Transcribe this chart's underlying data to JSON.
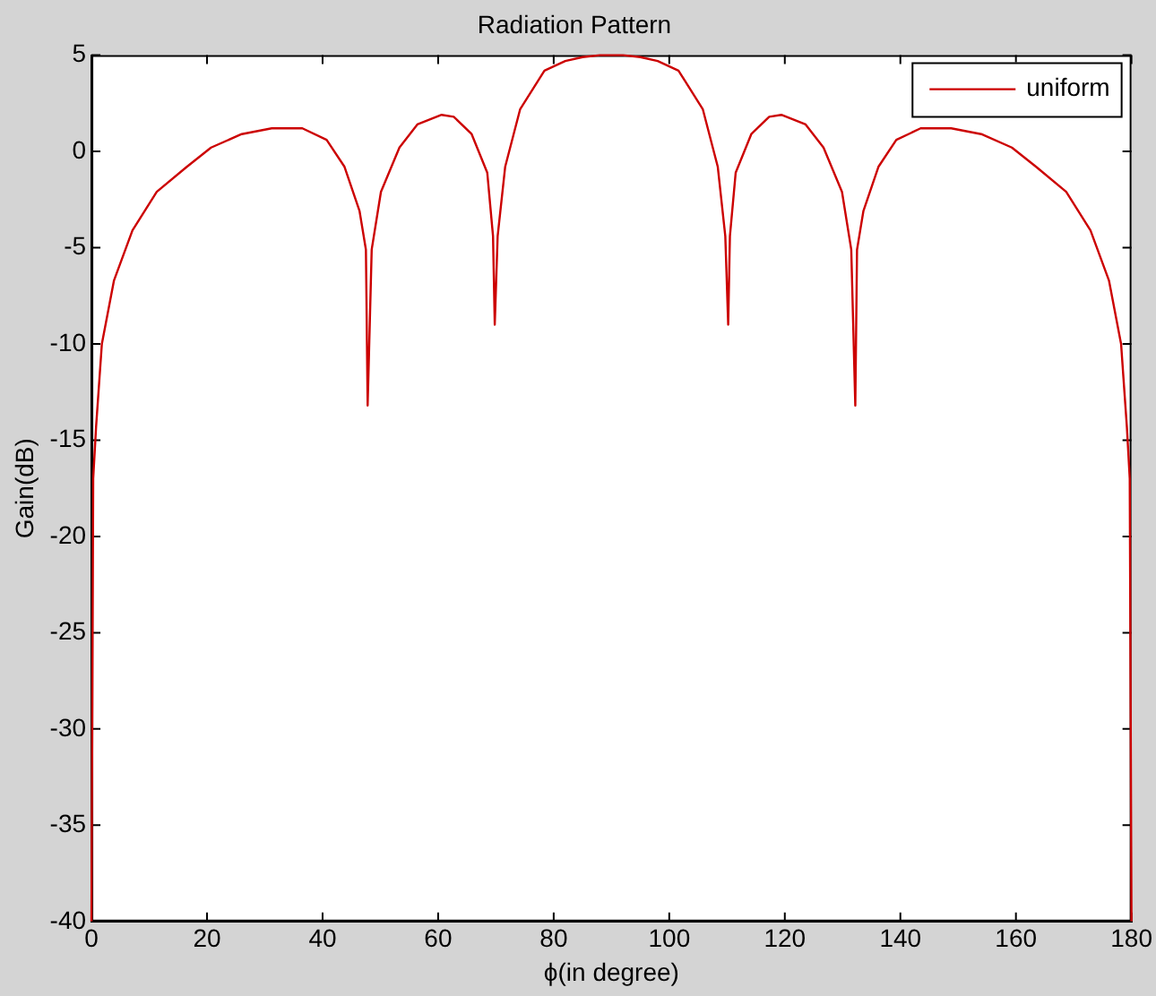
{
  "chart_data": {
    "type": "line",
    "title": "Radiation Pattern",
    "xlabel": "ϕ(in degree)",
    "ylabel": "Gain(dB)",
    "x": [
      0,
      0.3,
      0.8,
      1.8,
      3.9,
      7.1,
      11.3,
      16.5,
      20.7,
      26,
      31.2,
      36.5,
      40.7,
      43.8,
      46.4,
      47.5,
      47.8,
      48.5,
      50.1,
      53.3,
      56.4,
      60.6,
      62.7,
      65.8,
      68.5,
      69.5,
      69.8,
      70.3,
      71.6,
      74.2,
      78.4,
      82,
      85,
      88,
      90,
      92,
      95,
      98,
      101.6,
      105.8,
      108.4,
      109.7,
      110.2,
      110.5,
      111.5,
      114.2,
      117.3,
      119.4,
      123.6,
      126.7,
      129.9,
      131.5,
      132.2,
      132.5,
      133.6,
      136.2,
      139.3,
      143.5,
      148.8,
      154,
      159.3,
      163.5,
      168.7,
      172.9,
      176.1,
      178.2,
      179.2,
      179.7,
      180
    ],
    "series": [
      {
        "name": "uniform",
        "color": "#cc0000",
        "values": [
          -40,
          -17,
          -14.3,
          -10,
          -6.7,
          -4.1,
          -2.1,
          -0.8,
          0.2,
          0.9,
          1.2,
          1.2,
          0.6,
          -0.8,
          -3.1,
          -5.1,
          -13.2,
          -5.1,
          -2.1,
          0.2,
          1.4,
          1.9,
          1.8,
          0.9,
          -1.1,
          -4.4,
          -9,
          -4.4,
          -0.8,
          2.2,
          4.2,
          4.7,
          4.9,
          5,
          5,
          5,
          4.9,
          4.7,
          4.2,
          2.2,
          -0.8,
          -4.4,
          -9,
          -4.4,
          -1.1,
          0.9,
          1.8,
          1.9,
          1.4,
          0.2,
          -2.1,
          -5.1,
          -13.2,
          -5.1,
          -3.1,
          -0.8,
          0.6,
          1.2,
          1.2,
          0.9,
          0.2,
          -0.8,
          -2.1,
          -4.1,
          -6.7,
          -10,
          -14.3,
          -17,
          -40
        ]
      }
    ],
    "xlim": [
      0,
      180
    ],
    "xticks": [
      0,
      20,
      40,
      60,
      80,
      100,
      120,
      140,
      160,
      180
    ],
    "ylim": [
      -40,
      5
    ],
    "yticks": [
      -40,
      -35,
      -30,
      -25,
      -20,
      -15,
      -10,
      -5,
      0,
      5
    ],
    "grid": false,
    "legend": "top right",
    "marker": "none",
    "line_style": "solid"
  }
}
